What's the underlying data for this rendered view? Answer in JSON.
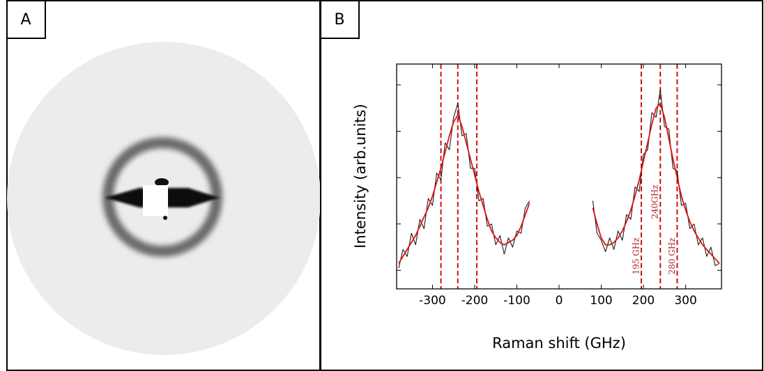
{
  "panel_labels": [
    "A",
    "B"
  ],
  "chart_data": {
    "type": "line",
    "xlabel": "Raman shift (GHz)",
    "ylabel": "Intensity (arb.units)",
    "x": [
      -380,
      -370,
      -360,
      -350,
      -340,
      -330,
      -320,
      -310,
      -300,
      -290,
      -280,
      -270,
      -260,
      -250,
      -240,
      -230,
      -220,
      -210,
      -200,
      -190,
      -180,
      -170,
      -160,
      -150,
      -140,
      -130,
      -120,
      -110,
      -100,
      -90,
      -80,
      -70,
      -60,
      -50,
      -40,
      -30,
      -20,
      -10,
      0,
      10,
      20,
      30,
      40,
      50,
      60,
      70,
      80,
      90,
      100,
      110,
      120,
      130,
      140,
      150,
      160,
      170,
      180,
      190,
      200,
      210,
      220,
      230,
      240,
      250,
      260,
      270,
      280,
      290,
      300,
      310,
      320,
      330,
      340,
      350,
      360,
      370,
      380
    ],
    "series": [
      {
        "color": "#1a1a1a",
        "values": [
          0.45,
          0.85,
          0.7,
          1.2,
          0.95,
          1.5,
          1.3,
          1.95,
          1.8,
          2.5,
          2.35,
          3.15,
          3.0,
          3.7,
          4.0,
          3.3,
          3.35,
          2.6,
          2.6,
          1.9,
          1.95,
          1.35,
          1.4,
          0.95,
          1.15,
          0.75,
          1.1,
          0.9,
          1.25,
          1.2,
          1.75,
          1.9,
          null,
          null,
          null,
          null,
          null,
          null,
          null,
          null,
          null,
          null,
          null,
          null,
          null,
          null,
          1.9,
          1.2,
          1.05,
          0.8,
          1.1,
          0.85,
          1.25,
          1.05,
          1.6,
          1.5,
          2.2,
          2.1,
          2.9,
          3.0,
          3.8,
          3.7,
          4.3,
          3.5,
          3.45,
          2.6,
          2.55,
          1.8,
          1.85,
          1.3,
          1.4,
          0.95,
          1.1,
          0.7,
          0.9,
          0.5,
          0.55
        ]
      },
      {
        "color": "#e01010",
        "values": [
          0.55,
          0.7,
          0.85,
          1.0,
          1.15,
          1.35,
          1.55,
          1.75,
          2.0,
          2.3,
          2.6,
          2.95,
          3.3,
          3.6,
          3.75,
          3.5,
          3.15,
          2.8,
          2.45,
          2.1,
          1.8,
          1.5,
          1.25,
          1.1,
          1.0,
          0.95,
          1.0,
          1.05,
          1.15,
          1.35,
          1.6,
          1.85,
          null,
          null,
          null,
          null,
          null,
          null,
          null,
          null,
          null,
          null,
          null,
          null,
          null,
          null,
          1.75,
          1.4,
          1.1,
          0.95,
          0.95,
          1.0,
          1.1,
          1.25,
          1.45,
          1.7,
          2.0,
          2.35,
          2.75,
          3.15,
          3.55,
          3.9,
          4.0,
          3.7,
          3.25,
          2.8,
          2.4,
          2.0,
          1.7,
          1.45,
          1.25,
          1.1,
          0.95,
          0.85,
          0.75,
          0.65,
          0.55
        ]
      }
    ],
    "xlim": [
      -385,
      385
    ],
    "xticks": [
      -300,
      -200,
      -100,
      0,
      100,
      200,
      300
    ],
    "ylim": [
      0,
      4.85
    ],
    "yticks": [
      0.4,
      1.4,
      2.4,
      3.4,
      4.4
    ],
    "vlines": [
      -280,
      -240,
      -195,
      195,
      240,
      280
    ],
    "vline_color": "#cc1111",
    "annotations": [
      "195 GHz",
      "240GHz",
      "280 GHz"
    ]
  }
}
